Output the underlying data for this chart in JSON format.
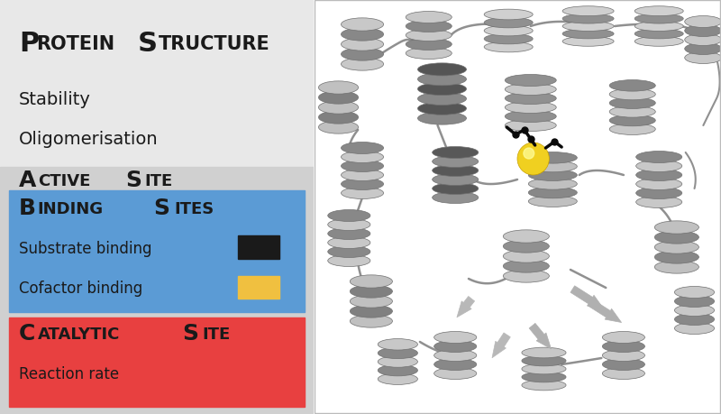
{
  "top_bg": "#e8e8e8",
  "bottom_bg": "#d0d0d0",
  "binding_bg": "#5b9bd5",
  "catalytic_bg": "#e84040",
  "substrate_color": "#1a1a1a",
  "cofactor_color": "#f0c040",
  "text_color": "#1a1a1a",
  "white": "#ffffff",
  "yellow_sphere": "#f0d020",
  "yellow_sphere_highlight": "#ffffa0",
  "title_big_size": 22,
  "title_small_size": 15,
  "section_big_size": 18,
  "section_small_size": 13,
  "body_size": 12,
  "subtitle1": "Stability",
  "subtitle2": "Oligomerisation",
  "substrate_label": "Substrate binding",
  "cofactor_label": "Cofactor binding",
  "reaction_label": "Reaction rate"
}
